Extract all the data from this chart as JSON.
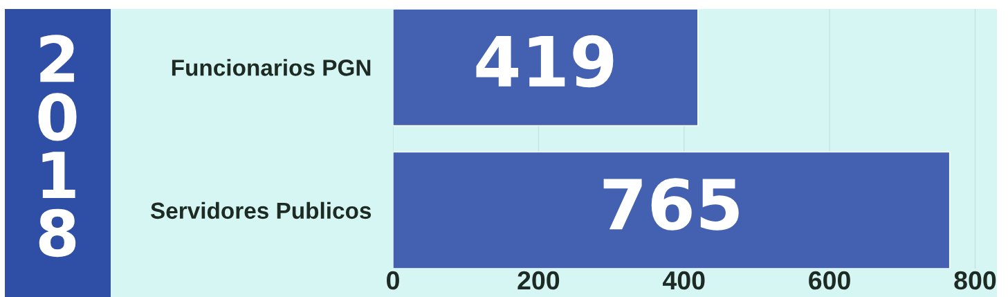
{
  "chart_data": {
    "type": "bar",
    "orientation": "horizontal",
    "title": "2018",
    "categories": [
      "Funcionarios PGN",
      "Servidores Publicos"
    ],
    "values": [
      419,
      765
    ],
    "color": "#4361b0",
    "xlim": [
      0,
      830
    ],
    "xticks": [
      0,
      200,
      400,
      600,
      800
    ],
    "grid": "x",
    "data_labels": true
  }
}
